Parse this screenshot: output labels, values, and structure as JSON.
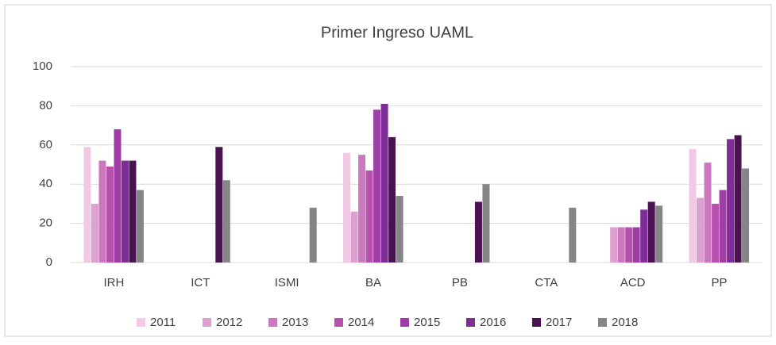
{
  "chart_data": {
    "type": "bar",
    "title": "Primer Ingreso UAML",
    "categories": [
      "IRH",
      "ICT",
      "ISMI",
      "BA",
      "PB",
      "CTA",
      "ACD",
      "PP"
    ],
    "series": [
      {
        "name": "2011",
        "color": "#f2c9e3",
        "values": [
          59,
          0,
          0,
          56,
          0,
          0,
          0,
          58
        ]
      },
      {
        "name": "2012",
        "color": "#dea0d0",
        "values": [
          30,
          0,
          0,
          26,
          0,
          0,
          18,
          33
        ]
      },
      {
        "name": "2013",
        "color": "#cc78bf",
        "values": [
          52,
          0,
          0,
          55,
          0,
          0,
          18,
          51
        ]
      },
      {
        "name": "2014",
        "color": "#b850ad",
        "values": [
          49,
          0,
          0,
          47,
          0,
          0,
          18,
          30
        ]
      },
      {
        "name": "2015",
        "color": "#a03ea8",
        "values": [
          68,
          0,
          0,
          78,
          0,
          0,
          18,
          37
        ]
      },
      {
        "name": "2016",
        "color": "#7d2c98",
        "values": [
          52,
          0,
          0,
          81,
          0,
          0,
          27,
          63
        ]
      },
      {
        "name": "2017",
        "color": "#4b1252",
        "values": [
          52,
          59,
          0,
          64,
          31,
          0,
          31,
          65
        ]
      },
      {
        "name": "2018",
        "color": "#858585",
        "values": [
          37,
          42,
          28,
          34,
          40,
          28,
          29,
          48
        ]
      }
    ],
    "ylim": [
      0,
      100
    ],
    "yticks": [
      0,
      20,
      40,
      60,
      80,
      100
    ],
    "grid": true,
    "legend": "bottom"
  }
}
